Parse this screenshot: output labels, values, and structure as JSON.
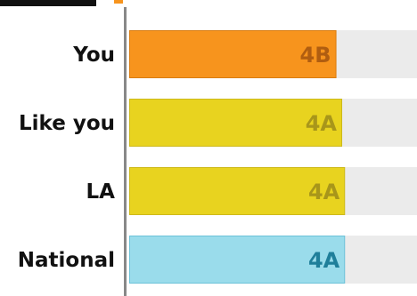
{
  "chart_data": {
    "type": "bar",
    "orientation": "horizontal",
    "categories": [
      "You",
      "Like you",
      "LA",
      "National"
    ],
    "values": [
      0.72,
      0.74,
      0.75,
      0.75
    ],
    "value_labels": [
      "4B",
      "4A",
      "4A",
      "4A"
    ],
    "xlim": [
      0,
      1
    ],
    "grid": false,
    "colors": {
      "bars": [
        "#f7941d",
        "#e8d31f",
        "#e8d31f",
        "#9adceb"
      ],
      "bar_borders": [
        "#d97c10",
        "#cdb91a",
        "#cdb91a",
        "#6cc2d8"
      ],
      "label_colors": [
        "#b05d10",
        "#a8961a",
        "#a8961a",
        "#1f7f9a"
      ],
      "track": "#ebebeb",
      "axis": "#888888",
      "top_accent": "#f7941d"
    }
  }
}
